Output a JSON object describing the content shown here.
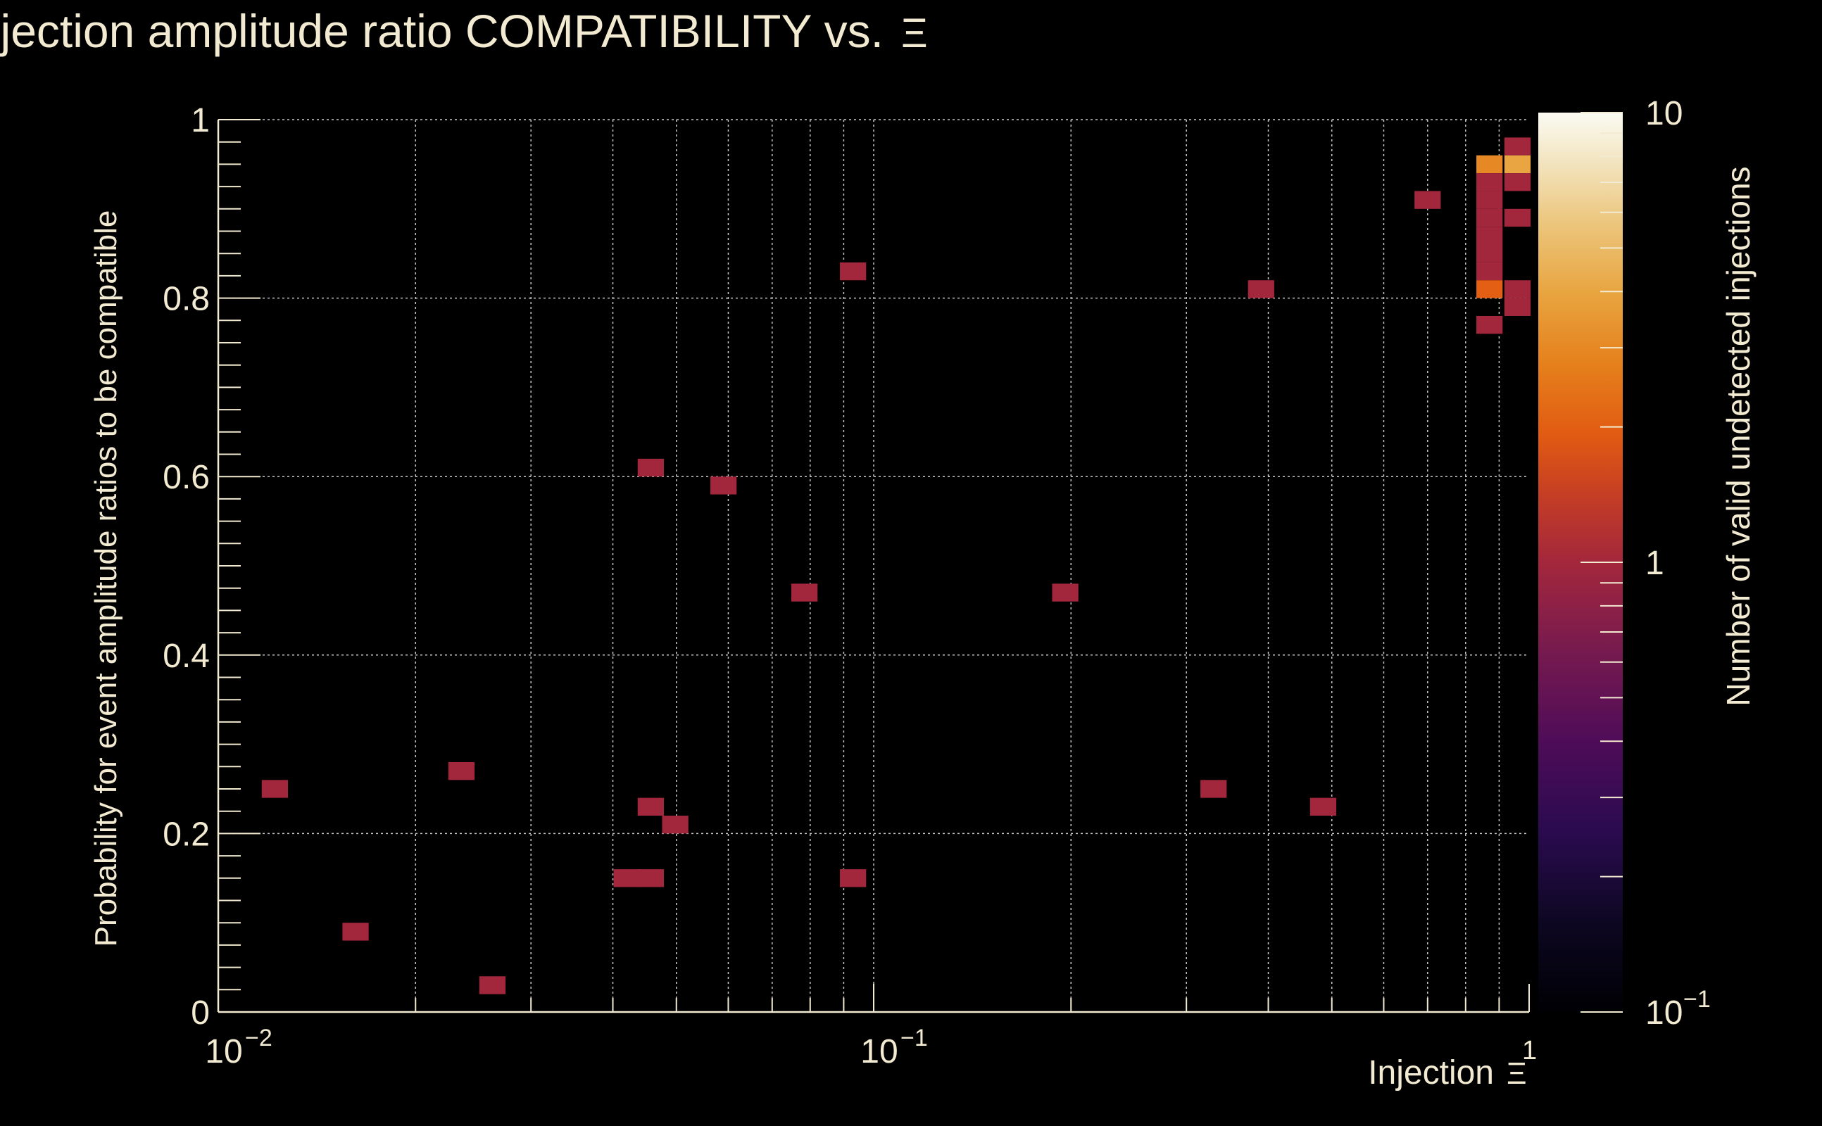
{
  "chart_data": {
    "type": "heatmap",
    "title": "Injection amplitude ratio COMPATIBILITY vs.",
    "title_symbol": "Ξ",
    "xlabel": "Injection",
    "xlabel_symbol": "Ξ",
    "ylabel": "Probability for event amplitude ratios to be compatible",
    "zlabel": "Number of valid undetected injections",
    "x_scale": "log",
    "xlim": [
      0.01,
      1
    ],
    "ylim": [
      0,
      1
    ],
    "zlim": [
      0.1,
      10
    ],
    "z_scale": "log",
    "grid": true,
    "x_tick_labels": [
      {
        "value": 0.01,
        "base": "10",
        "exp": "−2"
      },
      {
        "value": 0.1,
        "base": "10",
        "exp": "−1"
      },
      {
        "value": 1,
        "base": "",
        "exp": "1"
      }
    ],
    "y_tick_labels": [
      {
        "value": 0,
        "label": "0"
      },
      {
        "value": 0.2,
        "label": "0.2"
      },
      {
        "value": 0.4,
        "label": "0.4"
      },
      {
        "value": 0.6,
        "label": "0.6"
      },
      {
        "value": 0.8,
        "label": "0.8"
      },
      {
        "value": 1,
        "label": "1"
      }
    ],
    "z_tick_labels": [
      {
        "value": 0.1,
        "base": "10",
        "exp": "−1"
      },
      {
        "value": 1,
        "base": "1",
        "exp": ""
      },
      {
        "value": 10,
        "base": "10",
        "exp": ""
      }
    ],
    "x_bins_per_decade": 25,
    "y_bin_width": 0.02,
    "cells": [
      {
        "x": 0.0122,
        "y": 0.25,
        "count": 1
      },
      {
        "x": 0.0162,
        "y": 0.09,
        "count": 1
      },
      {
        "x": 0.0235,
        "y": 0.27,
        "count": 1
      },
      {
        "x": 0.0262,
        "y": 0.03,
        "count": 1
      },
      {
        "x": 0.042,
        "y": 0.15,
        "count": 1
      },
      {
        "x": 0.0457,
        "y": 0.15,
        "count": 1
      },
      {
        "x": 0.0457,
        "y": 0.23,
        "count": 1
      },
      {
        "x": 0.0457,
        "y": 0.61,
        "count": 1
      },
      {
        "x": 0.0498,
        "y": 0.21,
        "count": 1
      },
      {
        "x": 0.059,
        "y": 0.59,
        "count": 1
      },
      {
        "x": 0.0784,
        "y": 0.47,
        "count": 1
      },
      {
        "x": 0.093,
        "y": 0.83,
        "count": 1
      },
      {
        "x": 0.093,
        "y": 0.15,
        "count": 1
      },
      {
        "x": 0.196,
        "y": 0.47,
        "count": 1
      },
      {
        "x": 0.33,
        "y": 0.25,
        "count": 1
      },
      {
        "x": 0.39,
        "y": 0.81,
        "count": 1
      },
      {
        "x": 0.485,
        "y": 0.23,
        "count": 1
      },
      {
        "x": 0.7,
        "y": 0.91,
        "count": 1
      },
      {
        "x": 0.87,
        "y": 0.95,
        "count": 3
      },
      {
        "x": 0.87,
        "y": 0.93,
        "count": 1
      },
      {
        "x": 0.87,
        "y": 0.91,
        "count": 1
      },
      {
        "x": 0.87,
        "y": 0.89,
        "count": 1
      },
      {
        "x": 0.87,
        "y": 0.87,
        "count": 1
      },
      {
        "x": 0.87,
        "y": 0.85,
        "count": 1
      },
      {
        "x": 0.87,
        "y": 0.83,
        "count": 1
      },
      {
        "x": 0.87,
        "y": 0.81,
        "count": 2
      },
      {
        "x": 0.87,
        "y": 0.77,
        "count": 1
      },
      {
        "x": 0.96,
        "y": 0.97,
        "count": 1
      },
      {
        "x": 0.96,
        "y": 0.95,
        "count": 4
      },
      {
        "x": 0.96,
        "y": 0.93,
        "count": 1
      },
      {
        "x": 0.96,
        "y": 0.89,
        "count": 1
      },
      {
        "x": 0.96,
        "y": 0.81,
        "count": 1
      },
      {
        "x": 0.96,
        "y": 0.79,
        "count": 1
      }
    ]
  }
}
